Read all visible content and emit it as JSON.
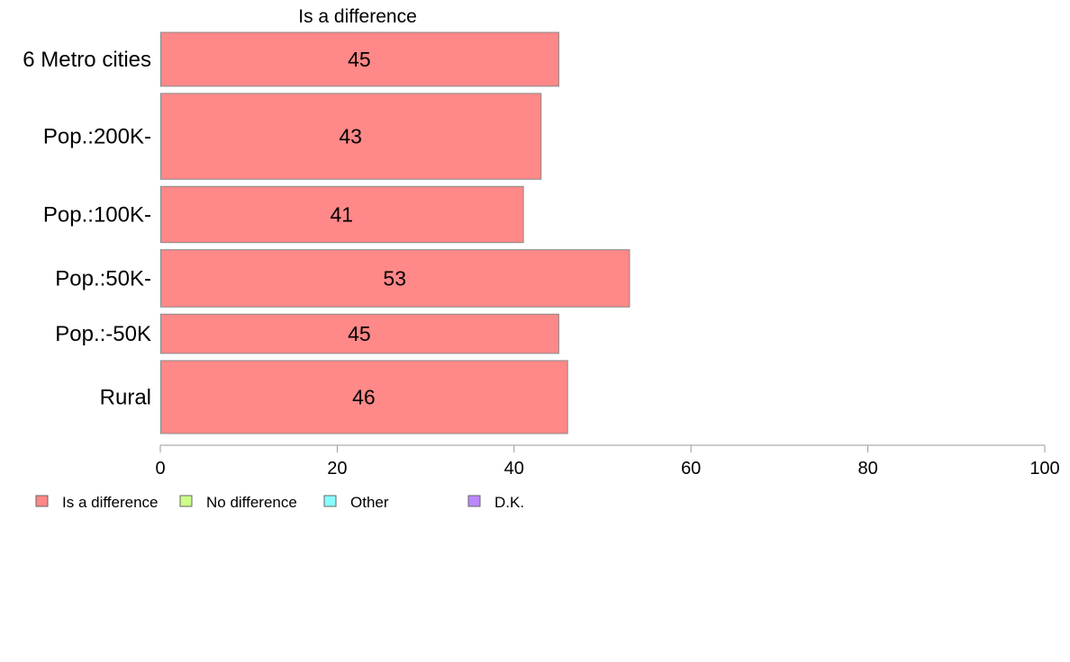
{
  "chart_data": {
    "type": "bar",
    "orientation": "horizontal",
    "title": "Is a difference",
    "categories": [
      "6 Metro cities",
      "Pop.:200K-",
      "Pop.:100K-",
      "Pop.:50K-",
      "Pop.:-50K",
      "Rural"
    ],
    "category_weights": [
      0.96,
      1.53,
      1.0,
      1.02,
      0.7,
      1.3
    ],
    "series": [
      {
        "name": "Is a difference",
        "values": [
          45,
          43,
          41,
          53,
          45,
          46
        ],
        "color": "#ff8888"
      }
    ],
    "value_labels": [
      "45",
      "43",
      "41",
      "53",
      "45",
      "46"
    ],
    "xlim": [
      0,
      100
    ],
    "xticks": [
      "0",
      "20",
      "40",
      "60",
      "80",
      "100"
    ],
    "xlabel": "",
    "ylabel": "",
    "grid": false,
    "legend": {
      "position": "bottom-left",
      "items": [
        {
          "label": "Is a difference",
          "color": "#ff8888"
        },
        {
          "label": "No difference",
          "color": "#ccff88"
        },
        {
          "label": "Other",
          "color": "#88ffff"
        },
        {
          "label": "D.K.",
          "color": "#bb88ff"
        }
      ]
    },
    "colors": {
      "bar_stroke": "#888888",
      "axis": "#999999"
    }
  }
}
